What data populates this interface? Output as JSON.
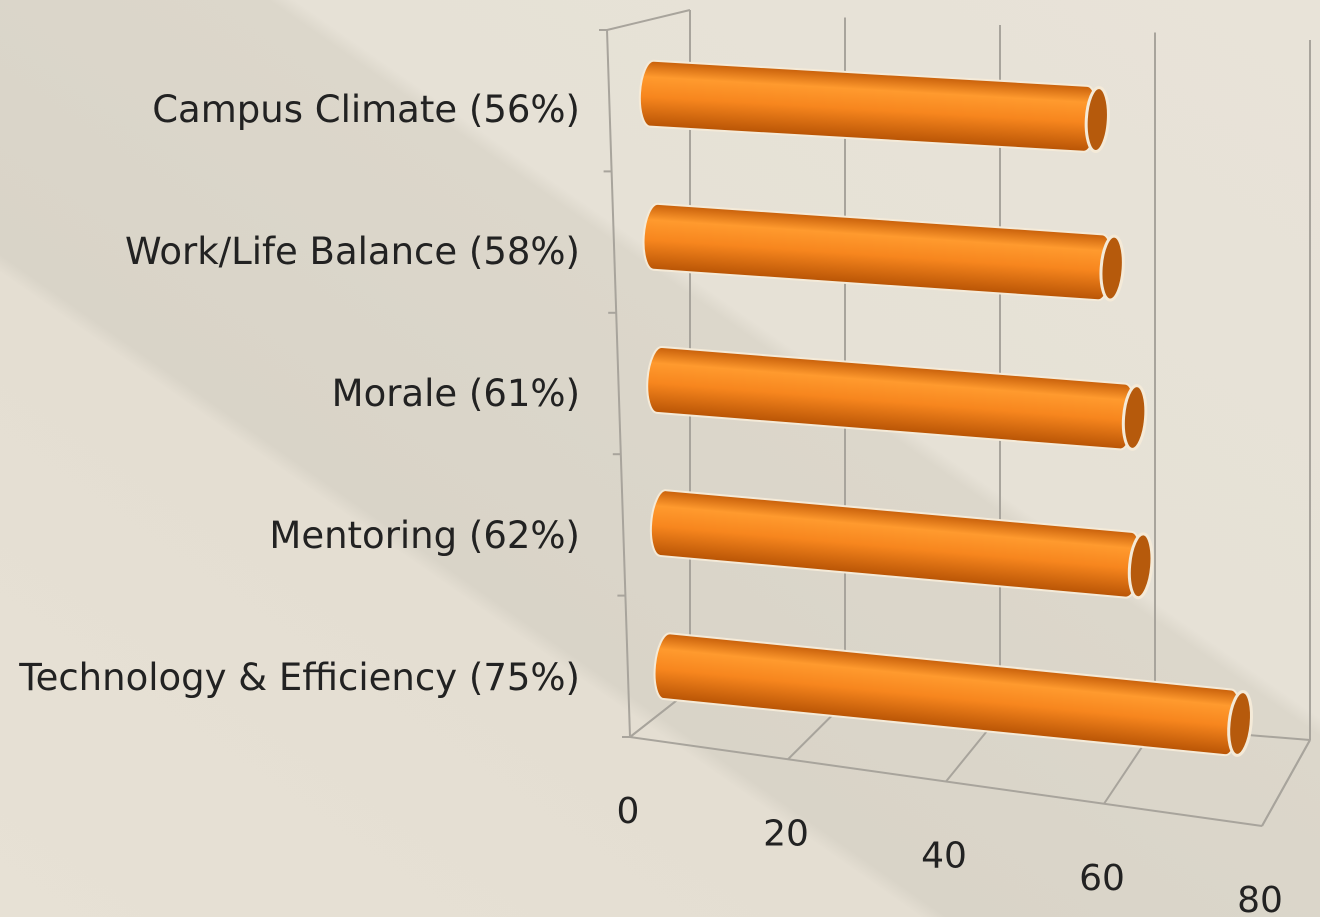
{
  "chart_data": {
    "type": "bar3d",
    "categories": [
      "Campus Climate (56%)",
      "Work/Life Balance (58%)",
      "Morale (61%)",
      "Mentoring (62%)",
      "Technology & Efficiency (75%)"
    ],
    "values": [
      56,
      58,
      61,
      62,
      75
    ],
    "color": "#f7861e",
    "xlim": [
      0,
      80
    ],
    "xticks": [
      0,
      20,
      40,
      60,
      80
    ],
    "grid": true
  }
}
